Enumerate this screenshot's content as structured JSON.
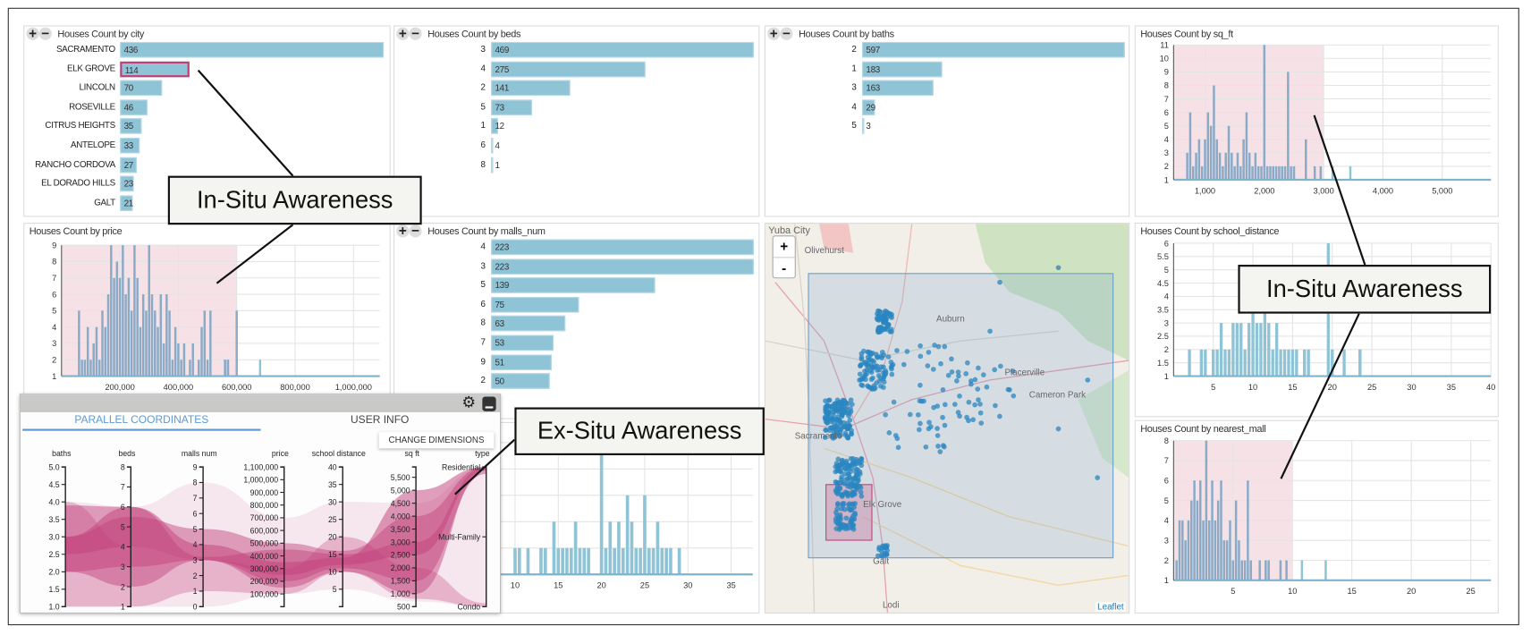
{
  "controls": {
    "plus": "+",
    "minus": "−"
  },
  "bar_charts": [
    {
      "id": "city",
      "title": "Houses Count by city",
      "categories": [
        "SACRAMENTO",
        "ELK GROVE",
        "LINCOLN",
        "ROSEVILLE",
        "CITRUS HEIGHTS",
        "ANTELOPE",
        "RANCHO CORDOVA",
        "EL DORADO HILLS",
        "GALT"
      ],
      "values": [
        436,
        114,
        70,
        46,
        35,
        33,
        27,
        23,
        21
      ],
      "highlighted": "ELK GROVE"
    },
    {
      "id": "beds",
      "title": "Houses Count by beds",
      "categories": [
        "3",
        "4",
        "2",
        "5",
        "1",
        "6",
        "8"
      ],
      "values": [
        469,
        275,
        141,
        73,
        12,
        4,
        1
      ]
    },
    {
      "id": "baths",
      "title": "Houses Count by baths",
      "categories": [
        "2",
        "1",
        "3",
        "4",
        "5"
      ],
      "values": [
        597,
        183,
        163,
        29,
        3
      ]
    },
    {
      "id": "malls",
      "title": "Houses Count by malls_num",
      "categories": [
        "4",
        "3",
        "5",
        "6",
        "8",
        "7",
        "9",
        "2"
      ],
      "values": [
        223,
        223,
        139,
        75,
        63,
        53,
        51,
        50
      ]
    }
  ],
  "chart_data": [
    {
      "id": "price",
      "type": "area",
      "title": "Houses Count by price",
      "xlim": [
        0,
        1090000
      ],
      "ylim": [
        1,
        9
      ],
      "xticks": [
        200000,
        400000,
        600000,
        800000,
        1000000
      ],
      "xtick_labels": [
        "200,000",
        "400,000",
        "600,000",
        "800,000",
        "1,000,000"
      ],
      "yticks": [
        1,
        2,
        3,
        4,
        5,
        6,
        7,
        8,
        9
      ],
      "ytick_labels": [
        "1",
        "2",
        "3",
        "4",
        "5",
        "6",
        "7",
        "8",
        "9"
      ],
      "grid": true,
      "brush": [
        0,
        600000
      ],
      "x_start": 60000,
      "x_step": 10000,
      "counts": [
        5,
        2,
        2,
        4,
        2,
        3,
        4,
        2,
        5,
        4,
        6,
        9,
        7,
        8,
        7,
        9,
        6,
        7,
        5,
        9,
        7,
        4,
        6,
        5,
        9,
        6,
        5,
        4,
        6,
        3,
        6,
        5,
        2,
        4,
        3,
        2,
        3,
        1,
        2,
        3,
        1,
        2,
        4,
        5,
        2,
        5,
        1,
        1,
        1,
        1,
        2,
        2,
        1,
        1,
        5
      ],
      "extra_points": [
        [
          560000,
          2
        ],
        [
          570000,
          2
        ],
        [
          680000,
          2
        ]
      ]
    },
    {
      "id": "sqft",
      "type": "area",
      "title": "Houses Count by sq_ft",
      "xlim": [
        470,
        5820
      ],
      "ylim": [
        1,
        11
      ],
      "xticks": [
        1000,
        2000,
        3000,
        4000,
        5000
      ],
      "xtick_labels": [
        "1,000",
        "2,000",
        "3,000",
        "4,000",
        "5,000"
      ],
      "yticks": [
        1,
        2,
        3,
        4,
        5,
        6,
        7,
        8,
        9,
        10,
        11
      ],
      "ytick_labels": [
        "1",
        "2",
        "3",
        "4",
        "5",
        "6",
        "7",
        "8",
        "9",
        "10",
        "11"
      ],
      "grid": true,
      "brush": [
        470,
        3000
      ],
      "x_start": 700,
      "x_step": 50,
      "counts": [
        3,
        6,
        2,
        3,
        4,
        2,
        4,
        6,
        5,
        8,
        4,
        3,
        2,
        3,
        5,
        3,
        2,
        3,
        2,
        4,
        6,
        3,
        2,
        3,
        2,
        2,
        11,
        2,
        2,
        2,
        2,
        2,
        2,
        2,
        9,
        2,
        2
      ],
      "extra_points": [
        [
          2700,
          4
        ],
        [
          2850,
          2
        ],
        [
          2950,
          2
        ],
        [
          3150,
          2
        ],
        [
          3450,
          2
        ]
      ]
    },
    {
      "id": "school",
      "type": "area",
      "title": "Houses Count by school_distance",
      "xlim": [
        0,
        40
      ],
      "ylim": [
        1,
        6
      ],
      "xticks": [
        5,
        10,
        15,
        20,
        25,
        30,
        35,
        40
      ],
      "xtick_labels": [
        "5",
        "10",
        "15",
        "20",
        "25",
        "30",
        "35",
        "40"
      ],
      "yticks": [
        1,
        1.5,
        2,
        2.5,
        3,
        3.5,
        4,
        4.5,
        5,
        5.5,
        6
      ],
      "ytick_labels": [
        "1",
        "1.5",
        "2",
        "2.5",
        "3",
        "3.5",
        "4",
        "4.5",
        "5",
        "5.5",
        "6"
      ],
      "grid": true,
      "brush": null,
      "x_start": 2,
      "x_step": 0.5,
      "counts": [
        2,
        1,
        1,
        2,
        2,
        1,
        2,
        2,
        3,
        2,
        2,
        3,
        3,
        3,
        2,
        3,
        4,
        3,
        3,
        4,
        3,
        2,
        3,
        2,
        2,
        2,
        2,
        2,
        1,
        2,
        2,
        1,
        1,
        1,
        1,
        6,
        2,
        1,
        1,
        2,
        1,
        1,
        1,
        2,
        1
      ],
      "extra_points": [
        [
          23.5,
          2
        ]
      ]
    },
    {
      "id": "nearest",
      "type": "area",
      "title": "Houses Count by nearest_mall",
      "xlim": [
        0,
        26.7
      ],
      "ylim": [
        1,
        8
      ],
      "xticks": [
        5,
        10,
        15,
        20,
        25
      ],
      "xtick_labels": [
        "5",
        "10",
        "15",
        "20",
        "25"
      ],
      "yticks": [
        1,
        2,
        3,
        4,
        5,
        6,
        7,
        8
      ],
      "ytick_labels": [
        "1",
        "2",
        "3",
        "4",
        "5",
        "6",
        "7",
        "8"
      ],
      "grid": true,
      "brush": [
        0,
        10
      ],
      "x_start": 0.25,
      "x_step": 0.25,
      "counts": [
        2,
        4,
        4,
        3,
        4,
        5,
        6,
        5,
        6,
        4,
        8,
        4,
        6,
        4,
        5,
        6,
        3,
        3,
        4,
        2,
        5,
        3,
        2,
        2,
        6,
        2,
        1,
        1,
        2,
        1,
        2,
        2,
        1,
        1,
        1,
        2,
        1,
        2,
        1,
        1
      ],
      "extra_points": [
        [
          10.8,
          2
        ],
        [
          12.8,
          2
        ]
      ]
    },
    {
      "id": "hidden",
      "type": "area",
      "title": "",
      "xlim": [
        0,
        37.5
      ],
      "ylim": [
        1,
        6
      ],
      "xticks": [
        10,
        15,
        20,
        25,
        30,
        35
      ],
      "xtick_labels": [
        "10",
        "15",
        "20",
        "25",
        "30",
        "35"
      ],
      "yticks": [
        1,
        2,
        3,
        4,
        5,
        6
      ],
      "ytick_labels": [],
      "grid": true,
      "brush": null,
      "x_start": 10,
      "x_step": 0.5,
      "counts": [
        2,
        2,
        1,
        2,
        1,
        1,
        2,
        2,
        1,
        3,
        2,
        2,
        2,
        2,
        3,
        2,
        2,
        2,
        1,
        1,
        6,
        2,
        3,
        2,
        3,
        2,
        4,
        3,
        2,
        2,
        4,
        2,
        2,
        3,
        2,
        2,
        2,
        1,
        2
      ],
      "extra_points": []
    }
  ],
  "map": {
    "labels": [
      "Yuba City",
      "Olivehurst",
      "Auburn",
      "Placerville",
      "Cameron Park",
      "Sacramento",
      "Elk Grove",
      "Galt",
      "Lodi"
    ],
    "zoom_in": "+",
    "zoom_out": "-",
    "attribution": "Leaflet",
    "selection_color": "#6a9fc8",
    "highlight_color": "#c2407a",
    "point_color": "#2a86c0"
  },
  "popup": {
    "tabs": [
      "PARALLEL COORDINATES",
      "USER INFO"
    ],
    "active_tab": "PARALLEL COORDINATES",
    "change_dimensions": "CHANGE DIMENSIONS",
    "axes": [
      {
        "label": "baths",
        "domain": [
          1,
          5
        ],
        "ticks": [
          1,
          1.5,
          2,
          2.5,
          3,
          3.5,
          4,
          4.5,
          5
        ],
        "tick_labels": [
          "1.0",
          "1.5",
          "2.0",
          "2.5",
          "3.0",
          "3.5",
          "4.0",
          "4.5",
          "5.0"
        ]
      },
      {
        "label": "beds",
        "domain": [
          1,
          8
        ],
        "ticks": [
          1,
          2,
          3,
          4,
          5,
          6,
          7,
          8
        ],
        "tick_labels": [
          "1",
          "2",
          "3",
          "4",
          "5",
          "6",
          "7",
          "8"
        ]
      },
      {
        "label": "malls num",
        "domain": [
          0,
          9
        ],
        "ticks": [
          0,
          1,
          2,
          3,
          4,
          5,
          6,
          7,
          8,
          9
        ],
        "tick_labels": [
          "0",
          "1",
          "2",
          "3",
          "4",
          "5",
          "6",
          "7",
          "8",
          "9"
        ]
      },
      {
        "label": "price",
        "domain": [
          0,
          1100000
        ],
        "ticks": [
          100000,
          200000,
          300000,
          400000,
          500000,
          600000,
          700000,
          800000,
          900000,
          1000000,
          1100000
        ],
        "tick_labels": [
          "100,000",
          "200,000",
          "300,000",
          "400,000",
          "500,000",
          "600,000",
          "700,000",
          "800,000",
          "900,000",
          "1,000,000",
          "1,100,000"
        ]
      },
      {
        "label": "school distance",
        "domain": [
          0,
          40
        ],
        "ticks": [
          5,
          10,
          15,
          20,
          25,
          30,
          35,
          40
        ],
        "tick_labels": [
          "5",
          "10",
          "15",
          "20",
          "25",
          "30",
          "35",
          "40"
        ]
      },
      {
        "label": "sq ft",
        "domain": [
          500,
          5900
        ],
        "ticks": [
          500,
          1000,
          1500,
          2000,
          2500,
          3000,
          3500,
          4000,
          4500,
          5000,
          5500
        ],
        "tick_labels": [
          "500",
          "1,000",
          "1,500",
          "2,000",
          "2,500",
          "3,000",
          "3,500",
          "4,000",
          "4,500",
          "5,000",
          "5,500"
        ]
      },
      {
        "label": "type",
        "domain": [
          0,
          2
        ],
        "ticks": [
          0,
          1,
          2
        ],
        "tick_labels": [
          "Condo",
          "Multi-Family",
          "Residential"
        ]
      }
    ],
    "bands": [
      {
        "ranges": [
          [
            1,
            4
          ],
          [
            1,
            6
          ],
          [
            0,
            8
          ],
          [
            100000,
            700000
          ],
          [
            5,
            30
          ],
          [
            700,
            4500
          ],
          [
            0,
            2
          ]
        ],
        "opacity": 0.12
      },
      {
        "ranges": [
          [
            2,
            3.9
          ],
          [
            2,
            6
          ],
          [
            3,
            3.2
          ],
          [
            150000,
            450000
          ],
          [
            10,
            15
          ],
          [
            1000,
            3000
          ],
          [
            1.95,
            2
          ]
        ],
        "opacity": 0.45
      },
      {
        "ranges": [
          [
            2,
            3
          ],
          [
            3,
            5.5
          ],
          [
            3,
            5
          ],
          [
            200000,
            500000
          ],
          [
            11,
            16
          ],
          [
            1500,
            4000
          ],
          [
            1.9,
            2
          ]
        ],
        "opacity": 0.45
      },
      {
        "ranges": [
          [
            1,
            4
          ],
          [
            1,
            4
          ],
          [
            1,
            3
          ],
          [
            100000,
            300000
          ],
          [
            10,
            20
          ],
          [
            800,
            2000
          ],
          [
            0,
            0.05
          ]
        ],
        "opacity": 0.3
      },
      {
        "ranges": [
          [
            2.5,
            3
          ],
          [
            4,
            6
          ],
          [
            3,
            4
          ],
          [
            250000,
            350000
          ],
          [
            12,
            14
          ],
          [
            2500,
            5000
          ],
          [
            1.95,
            2
          ]
        ],
        "opacity": 0.5
      }
    ],
    "band_color": "#c2407a"
  },
  "callouts": {
    "in_situ_1": "In-Situ Awareness",
    "in_situ_2": "In-Situ Awareness",
    "ex_situ": "Ex-Situ Awareness"
  },
  "colors": {
    "bar": "#8fc3d6",
    "brush": "#f6e1e7",
    "highlight": "#c2407a"
  }
}
